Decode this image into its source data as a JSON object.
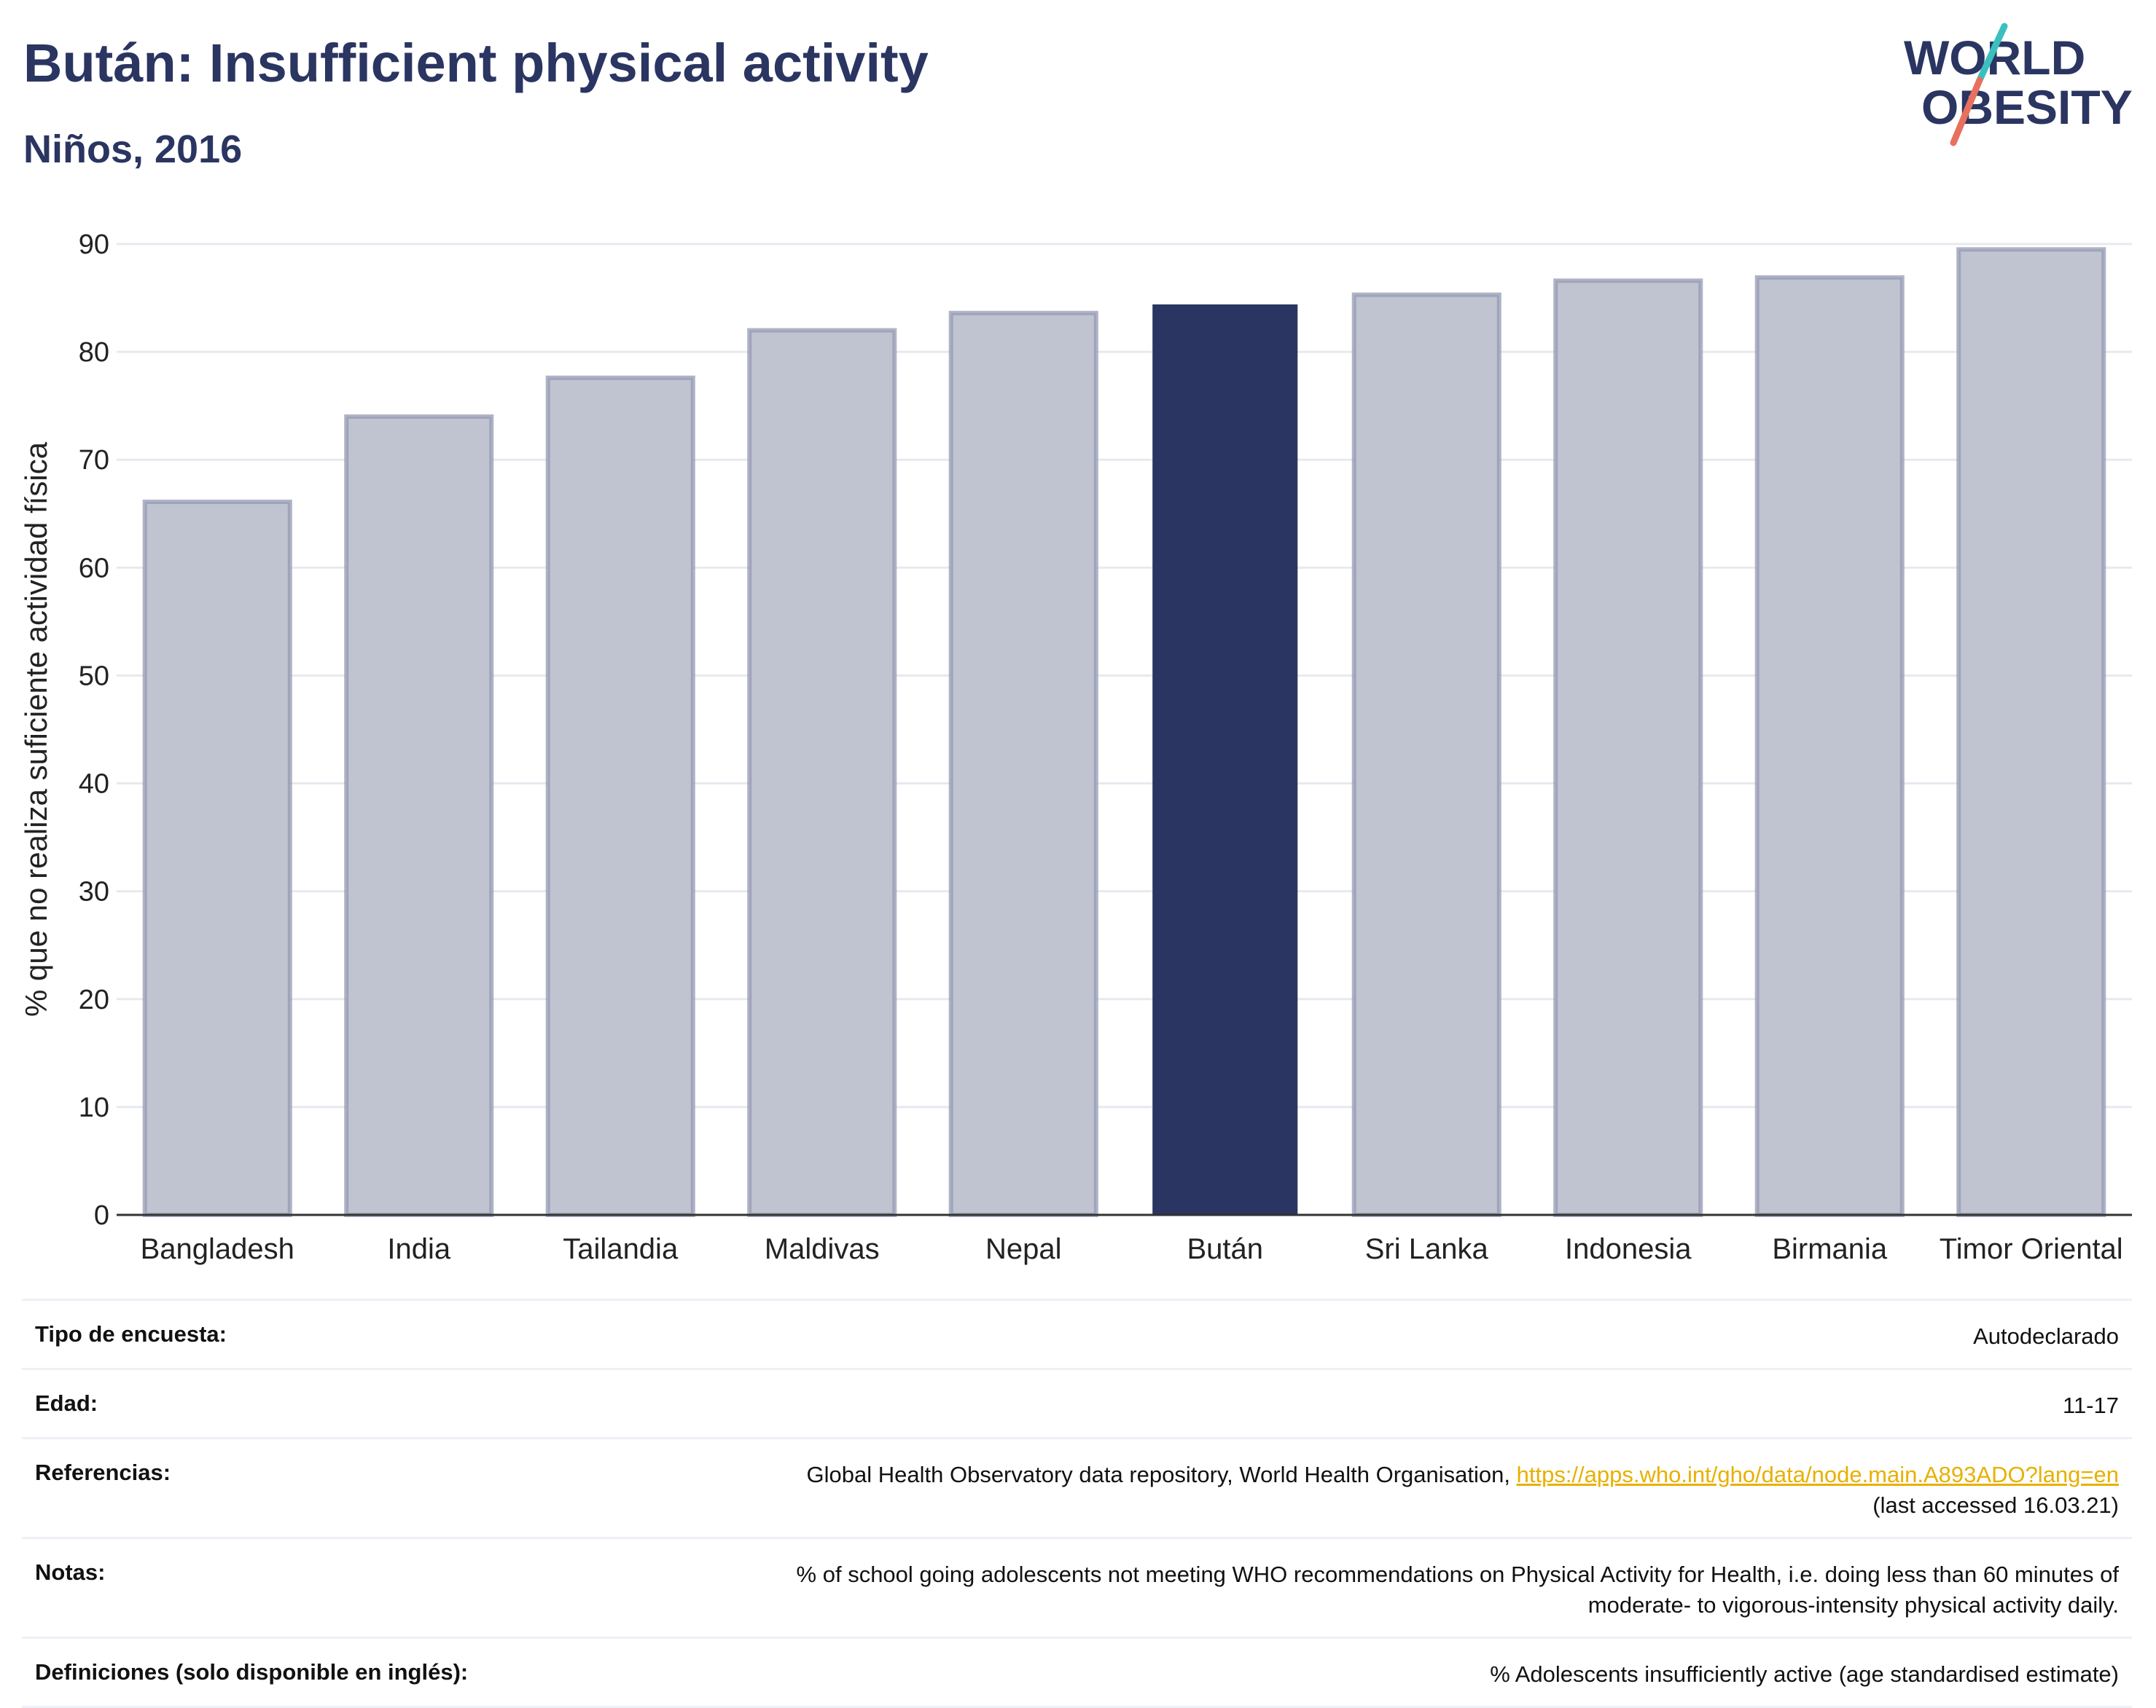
{
  "header": {
    "title": "Bután: Insufficient physical activity",
    "subtitle": "Niños, 2016"
  },
  "logo": {
    "line1": "WORLD",
    "line2": "OBESITY",
    "colors": {
      "text": "#2a3561",
      "slash_teal": "#3cbfbf",
      "slash_coral": "#e8705f"
    }
  },
  "chart_data": {
    "type": "bar",
    "categories": [
      "Bangladesh",
      "India",
      "Tailandia",
      "Maldivas",
      "Nepal",
      "Bután",
      "Sri Lanka",
      "Indonesia",
      "Birmania",
      "Timor Oriental"
    ],
    "values": [
      66.1,
      74.0,
      77.6,
      82.0,
      83.6,
      84.4,
      85.3,
      86.6,
      86.9,
      89.5
    ],
    "highlight": "Bután",
    "title": "Bután: Insufficient physical activity",
    "subtitle": "Niños, 2016",
    "xlabel": "",
    "ylabel": "% que no realiza suficiente actividad física",
    "ylim": [
      0,
      90
    ],
    "yticks": [
      0,
      10,
      20,
      30,
      40,
      50,
      60,
      70,
      80,
      90
    ],
    "grid": true,
    "colors": {
      "bar": "#c0c3d0",
      "bar_border": "#9499b3",
      "highlight": "#2a3561",
      "grid": "#e8e9ef",
      "axis": "#333333"
    }
  },
  "info": {
    "rows": [
      {
        "label": "Tipo de encuesta:",
        "value": "Autodeclarado"
      },
      {
        "label": "Edad:",
        "value": "11-17"
      },
      {
        "label": "Referencias:",
        "value": "Global Health Observatory data repository, World Health Organisation, ",
        "link": "https://apps.who.int/gho/data/node.main.A893ADO?lang=en",
        "value2": "(last accessed 16.03.21)"
      },
      {
        "label": "Notas:",
        "value": "% of school going adolescents not meeting WHO recommendations on Physical Activity for Health, i.e. doing less than 60 minutes of",
        "value2": "moderate- to vigorous-intensity physical activity daily."
      },
      {
        "label": "Definiciones (solo disponible en inglés):",
        "value": "% Adolescents insufficiently active (age standardised estimate)"
      }
    ]
  }
}
